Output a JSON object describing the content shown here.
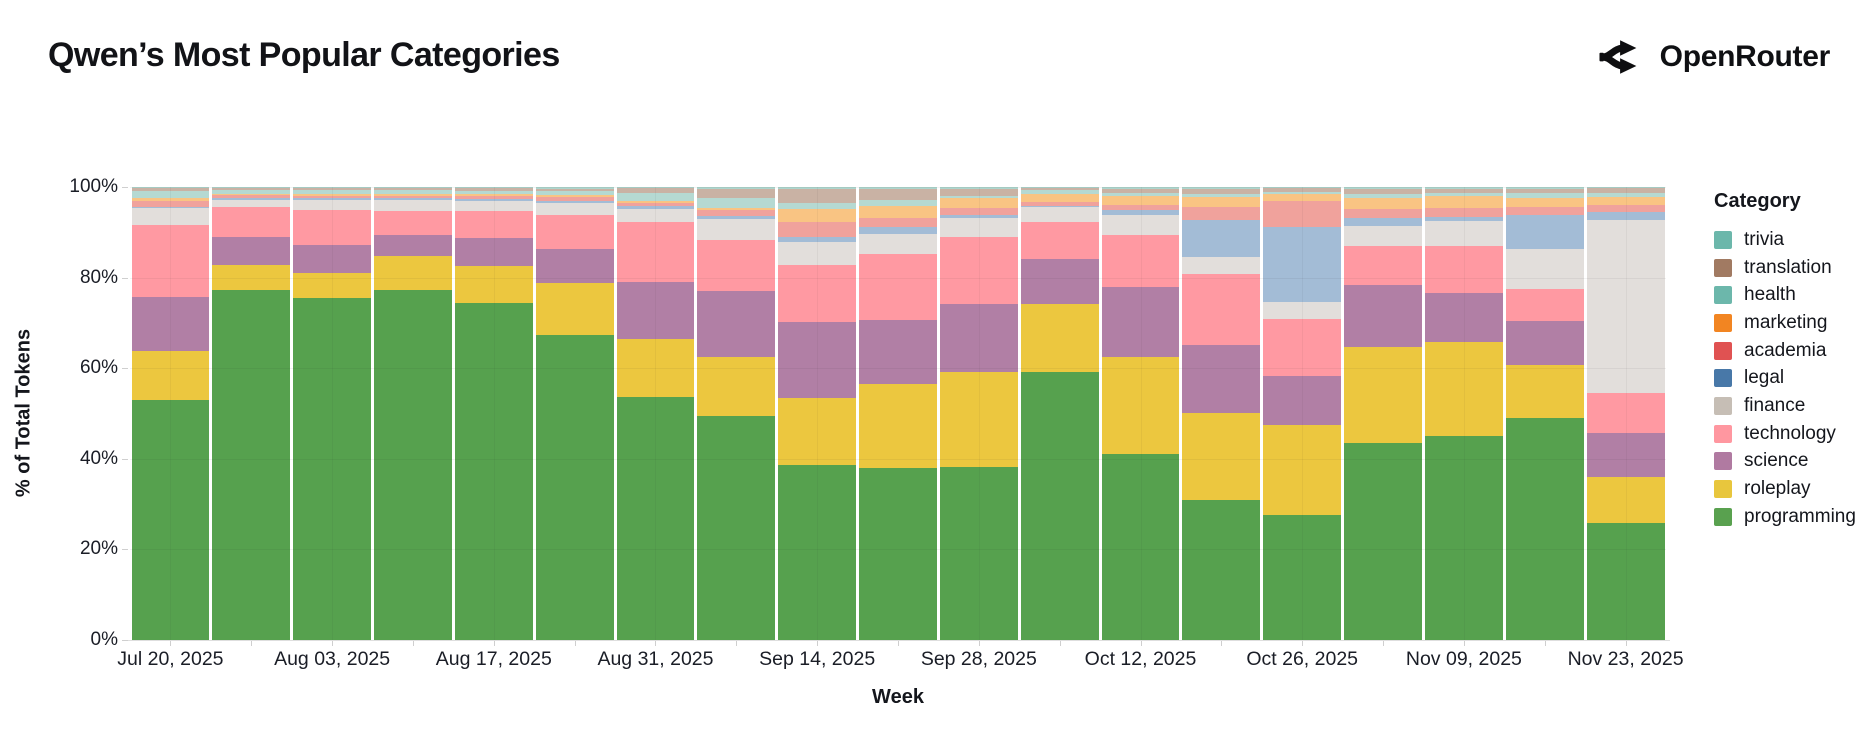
{
  "header": {
    "title": "Qwen’s Most Popular Categories",
    "brand": {
      "name": "OpenRouter",
      "icon": "openrouter-logo-icon"
    }
  },
  "chart_data": {
    "type": "bar",
    "variant": "stacked-percent",
    "title": "Qwen’s Most Popular Categories",
    "xlabel": "Week",
    "ylabel": "% of Total Tokens",
    "ylim": [
      0,
      100
    ],
    "ytick_step": 20,
    "ytick_labels": [
      "0%",
      "20%",
      "40%",
      "60%",
      "80%",
      "100%"
    ],
    "xtick_shown_every": 2,
    "grid": "faint horizontal and vertical lines over bars",
    "legend": {
      "title": "Category",
      "position": "right",
      "order_top_to_bottom": [
        "trivia",
        "translation",
        "health",
        "marketing",
        "academia",
        "legal",
        "finance",
        "technology",
        "science",
        "roleplay",
        "programming"
      ]
    },
    "x": [
      "Jul 20, 2025",
      "Jul 27, 2025",
      "Aug 03, 2025",
      "Aug 10, 2025",
      "Aug 17, 2025",
      "Aug 24, 2025",
      "Aug 31, 2025",
      "Sep 07, 2025",
      "Sep 14, 2025",
      "Sep 21, 2025",
      "Sep 28, 2025",
      "Oct 05, 2025",
      "Oct 12, 2025",
      "Oct 19, 2025",
      "Oct 26, 2025",
      "Nov 02, 2025",
      "Nov 09, 2025",
      "Nov 16, 2025",
      "Nov 23, 2025"
    ],
    "series": [
      {
        "name": "programming",
        "color": "#56a14e",
        "legend_color": "#59a14f",
        "values": [
          53.0,
          77.3,
          75.5,
          77.3,
          74.5,
          67.4,
          53.6,
          49.5,
          38.7,
          38.0,
          38.1,
          59.3,
          41.0,
          30.8,
          27.6,
          43.6,
          45.1,
          49.0,
          25.9
        ]
      },
      {
        "name": "roleplay",
        "color": "#ecc73f",
        "legend_color": "#e8c63d",
        "values": [
          10.9,
          5.5,
          5.6,
          7.5,
          8.1,
          11.4,
          13.0,
          12.9,
          14.7,
          18.4,
          21.0,
          14.9,
          21.4,
          19.4,
          19.9,
          21.0,
          20.6,
          11.7,
          10.0
        ]
      },
      {
        "name": "science",
        "color": "#b17fa5",
        "legend_color": "#b07aa1",
        "values": [
          11.9,
          6.1,
          6.2,
          4.6,
          6.1,
          7.5,
          12.6,
          14.7,
          16.9,
          14.2,
          15.1,
          10.1,
          15.6,
          15.0,
          10.8,
          13.8,
          10.9,
          9.8,
          9.9
        ]
      },
      {
        "name": "technology",
        "color": "#ff99a2",
        "legend_color": "#ff97a0",
        "values": [
          15.9,
          6.7,
          7.7,
          5.3,
          5.9,
          7.6,
          13.2,
          11.3,
          12.6,
          14.6,
          14.7,
          8.1,
          11.5,
          15.6,
          12.5,
          8.6,
          10.4,
          7.0,
          8.8
        ]
      },
      {
        "name": "finance",
        "color": "#e2dedb",
        "legend_color": "#c6beb5",
        "values": [
          3.6,
          1.6,
          2.2,
          2.5,
          2.4,
          2.6,
          2.9,
          4.6,
          5.0,
          4.4,
          4.2,
          3.2,
          4.4,
          3.8,
          3.9,
          4.3,
          5.6,
          8.8,
          38.1
        ]
      },
      {
        "name": "legal",
        "color": "#a3bcd6",
        "legend_color": "#4878a8",
        "values": [
          0.4,
          0.3,
          0.3,
          0.3,
          0.4,
          0.5,
          0.6,
          0.6,
          1.0,
          1.6,
          0.8,
          0.4,
          1.0,
          8.1,
          16.5,
          1.8,
          0.8,
          7.6,
          1.9
        ]
      },
      {
        "name": "academia",
        "color": "#f0a29c",
        "legend_color": "#e05252",
        "values": [
          1.2,
          0.7,
          0.6,
          0.6,
          0.6,
          0.8,
          0.7,
          1.3,
          3.5,
          1.9,
          1.5,
          0.9,
          1.1,
          2.8,
          5.7,
          2.0,
          2.0,
          1.7,
          1.4
        ]
      },
      {
        "name": "marketing",
        "color": "#f9c483",
        "legend_color": "#f28522",
        "values": [
          0.8,
          0.3,
          0.4,
          0.4,
          0.4,
          0.4,
          0.5,
          0.5,
          2.8,
          2.7,
          2.1,
          1.7,
          2.0,
          2.4,
          1.5,
          2.6,
          2.6,
          2.0,
          1.8
        ]
      },
      {
        "name": "health",
        "color": "#b5d9d2",
        "legend_color": "#6cb7ab",
        "values": [
          1.5,
          0.9,
          0.8,
          0.8,
          0.8,
          0.9,
          1.7,
          2.2,
          1.3,
          1.2,
          0.5,
          0.9,
          0.6,
          0.5,
          0.5,
          0.8,
          0.7,
          1.0,
          1.0
        ]
      },
      {
        "name": "translation",
        "color": "#c9b2a4",
        "legend_color": "#a17a62",
        "values": [
          0.5,
          0.3,
          0.4,
          0.4,
          0.5,
          0.5,
          1.1,
          2.0,
          3.0,
          2.5,
          1.6,
          0.4,
          1.0,
          1.2,
          0.8,
          1.0,
          0.9,
          1.0,
          0.9
        ]
      },
      {
        "name": "trivia",
        "color": "#aed5cd",
        "legend_color": "#6cb7ab",
        "values": [
          0.3,
          0.3,
          0.3,
          0.3,
          0.3,
          0.4,
          0.2,
          0.4,
          0.5,
          0.4,
          0.4,
          0.2,
          0.4,
          0.4,
          0.3,
          0.5,
          0.4,
          0.4,
          0.3
        ]
      }
    ]
  }
}
